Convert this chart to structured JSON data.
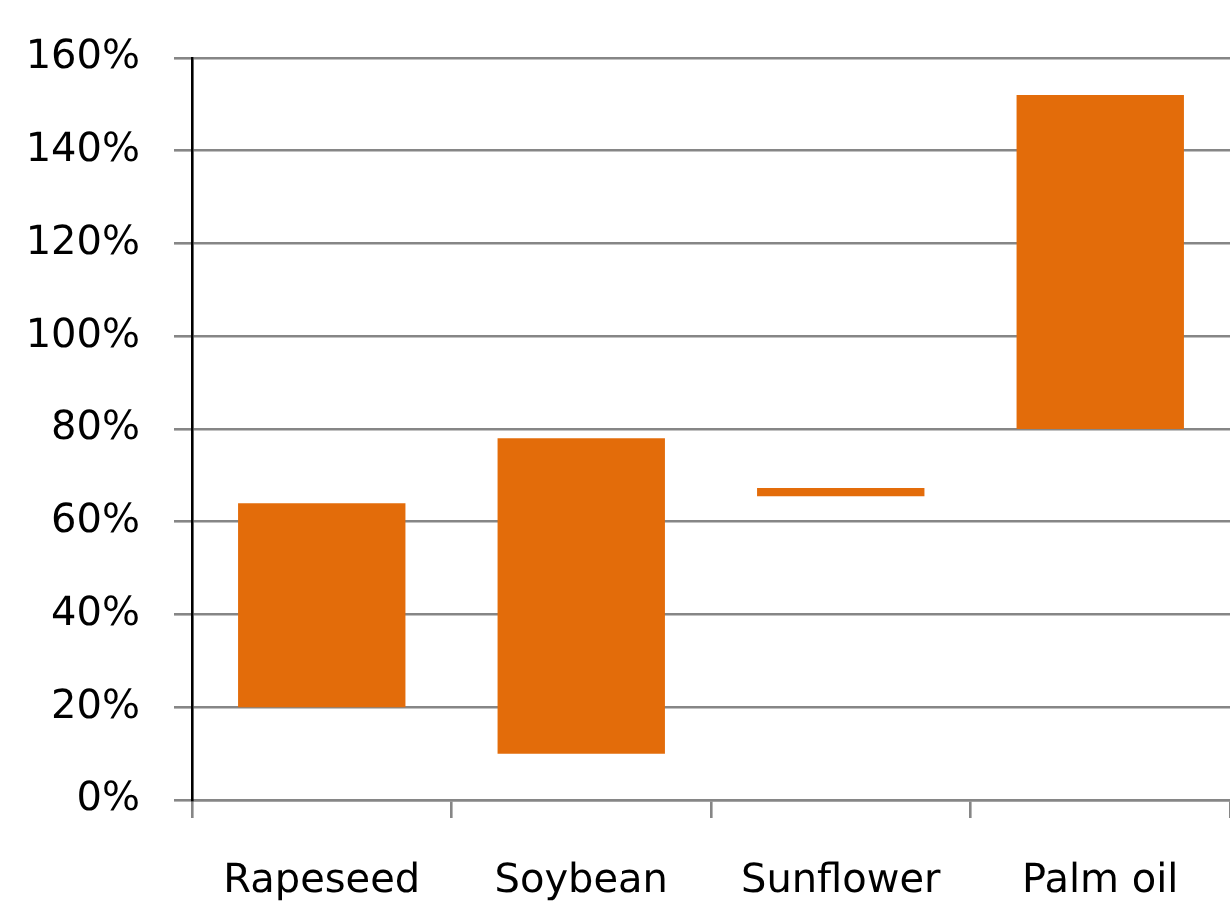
{
  "chart_data": {
    "type": "bar",
    "categories": [
      "Rapeseed",
      "Soybean",
      "Sunflower",
      "Palm oil"
    ],
    "base": [
      20,
      10,
      65.5,
      80
    ],
    "values": [
      44,
      68,
      1.8,
      72
    ],
    "color": "#e36c0a",
    "ylim": [
      0,
      160
    ],
    "yticks": [
      {
        "value": 0,
        "label": "0%"
      },
      {
        "value": 20,
        "label": "20%"
      },
      {
        "value": 40,
        "label": "40%"
      },
      {
        "value": 60,
        "label": "60%"
      },
      {
        "value": 80,
        "label": "80%"
      },
      {
        "value": 100,
        "label": "100%"
      },
      {
        "value": 120,
        "label": "120%"
      },
      {
        "value": 140,
        "label": "140%"
      },
      {
        "value": 160,
        "label": "160%"
      }
    ],
    "grid": "y"
  }
}
